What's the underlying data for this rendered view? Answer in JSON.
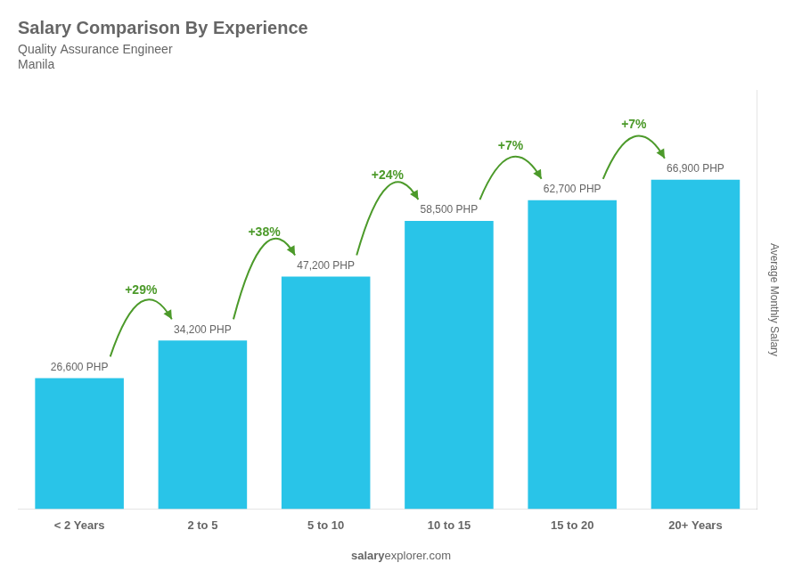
{
  "chart_data": {
    "type": "bar",
    "title": "Salary Comparison By Experience",
    "subtitle": [
      "Quality Assurance Engineer",
      "Manila"
    ],
    "categories": [
      "< 2 Years",
      "2 to 5",
      "5 to 10",
      "10 to 15",
      "15 to 20",
      "20+ Years"
    ],
    "values": [
      26600,
      34200,
      47200,
      58500,
      62700,
      66900
    ],
    "value_labels": [
      "26,600 PHP",
      "34,200 PHP",
      "47,200 PHP",
      "58,500 PHP",
      "62,700 PHP",
      "66,900 PHP"
    ],
    "data_labels": true,
    "annotations": [
      {
        "value": 29,
        "label": "+29%"
      },
      {
        "value": 38,
        "label": "+38%"
      },
      {
        "value": 24,
        "label": "+24%"
      },
      {
        "value": 7,
        "label": "+7%"
      },
      {
        "value": 7,
        "label": "+7%"
      }
    ],
    "color": "#29c4e8",
    "ylabel": "Average Monthly Salary",
    "footer": [
      "salary",
      "explorer.com"
    ],
    "ylim": [
      0,
      85000
    ],
    "grid": false,
    "legend": false,
    "tick_labels": "x"
  }
}
